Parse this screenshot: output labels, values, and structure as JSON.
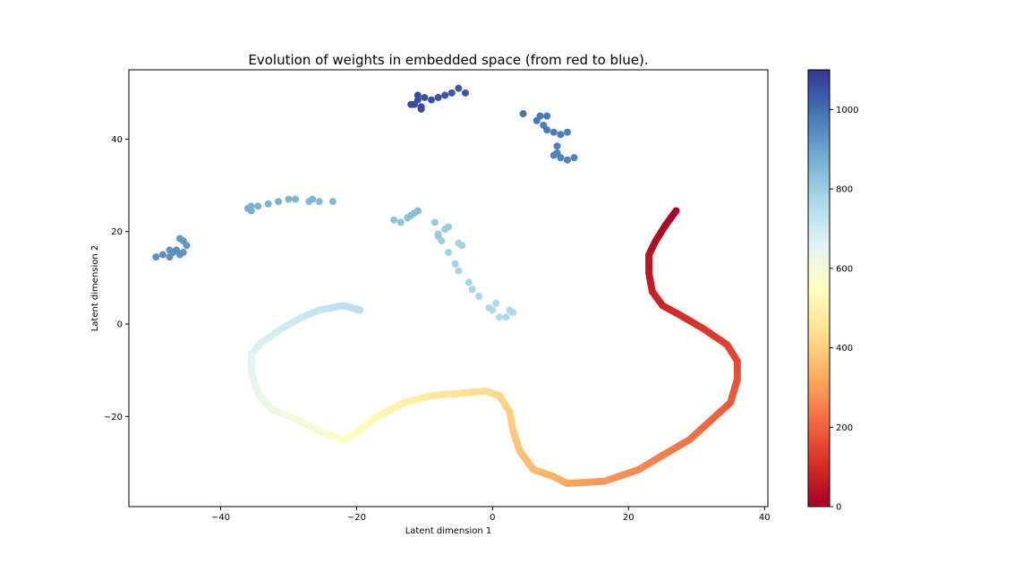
{
  "chart_data": {
    "type": "scatter",
    "title": "Evolution of weights in embedded space (from red to blue).",
    "xlabel": "Latent dimension 1",
    "ylabel": "Latent dimension 2",
    "xlim": [
      -53.5,
      40.5
    ],
    "ylim": [
      -39.5,
      55.0
    ],
    "xticks": [
      -40,
      -20,
      0,
      20,
      40
    ],
    "xtick_labels": [
      "−40",
      "−20",
      "0",
      "20",
      "40"
    ],
    "yticks": [
      -20,
      0,
      20,
      40
    ],
    "ytick_labels": [
      "−20",
      "0",
      "20",
      "40"
    ],
    "grid": false,
    "colormap": "RdYlBu",
    "colorbar": {
      "range": [
        0,
        1100
      ],
      "ticks": [
        0,
        200,
        400,
        600,
        800,
        1000
      ],
      "tick_labels": [
        "0",
        "200",
        "400",
        "600",
        "800",
        "1000"
      ]
    },
    "path_keypoints": [
      {
        "c": 0,
        "x": 27.0,
        "y": 24.5
      },
      {
        "c": 10,
        "x": 25.5,
        "y": 21.5
      },
      {
        "c": 25,
        "x": 24.0,
        "y": 18.0
      },
      {
        "c": 40,
        "x": 23.0,
        "y": 15.0
      },
      {
        "c": 55,
        "x": 23.0,
        "y": 11.0
      },
      {
        "c": 70,
        "x": 23.5,
        "y": 7.0
      },
      {
        "c": 85,
        "x": 25.0,
        "y": 4.0
      },
      {
        "c": 100,
        "x": 27.5,
        "y": 2.0
      },
      {
        "c": 120,
        "x": 31.0,
        "y": -1.0
      },
      {
        "c": 140,
        "x": 34.5,
        "y": -4.5
      },
      {
        "c": 155,
        "x": 36.0,
        "y": -8.0
      },
      {
        "c": 170,
        "x": 36.0,
        "y": -12.0
      },
      {
        "c": 185,
        "x": 35.0,
        "y": -17.0
      },
      {
        "c": 205,
        "x": 32.0,
        "y": -21.0
      },
      {
        "c": 225,
        "x": 29.0,
        "y": -25.0
      },
      {
        "c": 245,
        "x": 25.5,
        "y": -28.0
      },
      {
        "c": 265,
        "x": 21.5,
        "y": -31.5
      },
      {
        "c": 290,
        "x": 16.5,
        "y": -34.0
      },
      {
        "c": 315,
        "x": 11.0,
        "y": -34.5
      },
      {
        "c": 335,
        "x": 9.0,
        "y": -33.0
      },
      {
        "c": 355,
        "x": 6.0,
        "y": -31.5
      },
      {
        "c": 370,
        "x": 4.0,
        "y": -27.5
      },
      {
        "c": 385,
        "x": 3.0,
        "y": -23.0
      },
      {
        "c": 400,
        "x": 2.5,
        "y": -19.0
      },
      {
        "c": 415,
        "x": 1.0,
        "y": -15.5
      },
      {
        "c": 430,
        "x": -1.0,
        "y": -14.5
      },
      {
        "c": 450,
        "x": -5.0,
        "y": -15.0
      },
      {
        "c": 470,
        "x": -9.0,
        "y": -15.5
      },
      {
        "c": 495,
        "x": -13.0,
        "y": -17.0
      },
      {
        "c": 520,
        "x": -17.5,
        "y": -20.5
      },
      {
        "c": 540,
        "x": -20.0,
        "y": -23.5
      },
      {
        "c": 560,
        "x": -22.0,
        "y": -25.0
      },
      {
        "c": 575,
        "x": -25.0,
        "y": -23.5
      },
      {
        "c": 595,
        "x": -29.0,
        "y": -20.5
      },
      {
        "c": 615,
        "x": -32.5,
        "y": -18.5
      },
      {
        "c": 630,
        "x": -34.5,
        "y": -15.0
      },
      {
        "c": 645,
        "x": -35.5,
        "y": -10.5
      },
      {
        "c": 660,
        "x": -35.5,
        "y": -6.5
      },
      {
        "c": 675,
        "x": -34.0,
        "y": -4.0
      },
      {
        "c": 690,
        "x": -31.0,
        "y": -1.0
      },
      {
        "c": 705,
        "x": -28.0,
        "y": 1.5
      },
      {
        "c": 720,
        "x": -25.5,
        "y": 3.0
      },
      {
        "c": 735,
        "x": -22.0,
        "y": 4.0
      },
      {
        "c": 745,
        "x": -19.5,
        "y": 3.0
      }
    ],
    "points": [
      {
        "c": 760,
        "x": 0.0,
        "y": 3.0
      },
      {
        "c": 762,
        "x": 1.0,
        "y": 1.5
      },
      {
        "c": 764,
        "x": 2.0,
        "y": 1.5
      },
      {
        "c": 766,
        "x": 2.5,
        "y": 3.0
      },
      {
        "c": 768,
        "x": 3.0,
        "y": 2.5
      },
      {
        "c": 770,
        "x": 0.5,
        "y": 4.5
      },
      {
        "c": 772,
        "x": -0.5,
        "y": 3.5
      },
      {
        "c": 774,
        "x": -2.0,
        "y": 6.0
      },
      {
        "c": 776,
        "x": -3.0,
        "y": 7.5
      },
      {
        "c": 778,
        "x": -3.5,
        "y": 9.0
      },
      {
        "c": 780,
        "x": -5.0,
        "y": 11.5
      },
      {
        "c": 782,
        "x": -5.5,
        "y": 13.0
      },
      {
        "c": 784,
        "x": -6.5,
        "y": 15.5
      },
      {
        "c": 786,
        "x": -5.0,
        "y": 17.5
      },
      {
        "c": 788,
        "x": -4.5,
        "y": 17.0
      },
      {
        "c": 800,
        "x": -7.5,
        "y": 18.0
      },
      {
        "c": 802,
        "x": -8.0,
        "y": 19.5
      },
      {
        "c": 804,
        "x": -7.0,
        "y": 20.5
      },
      {
        "c": 806,
        "x": -6.5,
        "y": 21.0
      },
      {
        "c": 808,
        "x": -8.5,
        "y": 22.0
      },
      {
        "c": 810,
        "x": -8.0,
        "y": 19.0
      },
      {
        "c": 830,
        "x": -14.5,
        "y": 22.5
      },
      {
        "c": 832,
        "x": -13.5,
        "y": 22.0
      },
      {
        "c": 834,
        "x": -12.5,
        "y": 23.0
      },
      {
        "c": 836,
        "x": -11.5,
        "y": 24.0
      },
      {
        "c": 838,
        "x": -12.0,
        "y": 23.5
      },
      {
        "c": 840,
        "x": -11.0,
        "y": 24.5
      },
      {
        "c": 850,
        "x": -23.5,
        "y": 26.5
      },
      {
        "c": 852,
        "x": -25.5,
        "y": 26.5
      },
      {
        "c": 854,
        "x": -26.5,
        "y": 27.0
      },
      {
        "c": 856,
        "x": -27.0,
        "y": 26.5
      },
      {
        "c": 858,
        "x": -29.0,
        "y": 27.0
      },
      {
        "c": 860,
        "x": -30.0,
        "y": 27.0
      },
      {
        "c": 862,
        "x": -31.5,
        "y": 26.5
      },
      {
        "c": 864,
        "x": -33.0,
        "y": 26.0
      },
      {
        "c": 866,
        "x": -34.5,
        "y": 25.5
      },
      {
        "c": 868,
        "x": -35.5,
        "y": 25.5
      },
      {
        "c": 870,
        "x": -35.5,
        "y": 24.5
      },
      {
        "c": 872,
        "x": -36.0,
        "y": 25.0
      },
      {
        "c": 920,
        "x": -46.0,
        "y": 18.5
      },
      {
        "c": 922,
        "x": -45.5,
        "y": 18.0
      },
      {
        "c": 924,
        "x": -45.0,
        "y": 17.0
      },
      {
        "c": 926,
        "x": -45.5,
        "y": 15.5
      },
      {
        "c": 928,
        "x": -46.0,
        "y": 15.0
      },
      {
        "c": 930,
        "x": -47.0,
        "y": 15.5
      },
      {
        "c": 932,
        "x": -47.5,
        "y": 16.0
      },
      {
        "c": 934,
        "x": -47.5,
        "y": 14.5
      },
      {
        "c": 936,
        "x": -48.5,
        "y": 15.0
      },
      {
        "c": 938,
        "x": -49.5,
        "y": 14.5
      },
      {
        "c": 940,
        "x": -46.5,
        "y": 16.0
      },
      {
        "c": 960,
        "x": 12.0,
        "y": 36.0
      },
      {
        "c": 962,
        "x": 11.0,
        "y": 35.5
      },
      {
        "c": 964,
        "x": 10.0,
        "y": 36.0
      },
      {
        "c": 966,
        "x": 9.5,
        "y": 37.0
      },
      {
        "c": 968,
        "x": 9.0,
        "y": 36.5
      },
      {
        "c": 970,
        "x": 9.5,
        "y": 38.5
      },
      {
        "c": 972,
        "x": 11.0,
        "y": 41.5
      },
      {
        "c": 974,
        "x": 10.0,
        "y": 41.0
      },
      {
        "c": 976,
        "x": 9.0,
        "y": 41.5
      },
      {
        "c": 978,
        "x": 8.0,
        "y": 42.0
      },
      {
        "c": 980,
        "x": 7.5,
        "y": 43.0
      },
      {
        "c": 982,
        "x": 6.5,
        "y": 44.0
      },
      {
        "c": 984,
        "x": 7.0,
        "y": 45.0
      },
      {
        "c": 986,
        "x": 8.0,
        "y": 45.0
      },
      {
        "c": 988,
        "x": 4.5,
        "y": 45.5
      },
      {
        "c": 1040,
        "x": -4.0,
        "y": 50.0
      },
      {
        "c": 1042,
        "x": -5.0,
        "y": 51.0
      },
      {
        "c": 1044,
        "x": -6.0,
        "y": 50.0
      },
      {
        "c": 1046,
        "x": -7.0,
        "y": 49.5
      },
      {
        "c": 1048,
        "x": -8.0,
        "y": 49.0
      },
      {
        "c": 1050,
        "x": -9.0,
        "y": 48.5
      },
      {
        "c": 1052,
        "x": -10.0,
        "y": 49.0
      },
      {
        "c": 1054,
        "x": -11.0,
        "y": 48.5
      },
      {
        "c": 1056,
        "x": -11.5,
        "y": 47.5
      },
      {
        "c": 1058,
        "x": -10.5,
        "y": 47.0
      },
      {
        "c": 1060,
        "x": -10.5,
        "y": 46.5
      },
      {
        "c": 1062,
        "x": -12.0,
        "y": 47.5
      },
      {
        "c": 1064,
        "x": -11.0,
        "y": 49.5
      }
    ]
  }
}
